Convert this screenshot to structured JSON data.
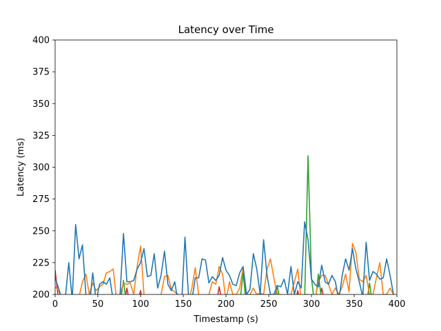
{
  "chart_data": {
    "type": "line",
    "title": "Latency over Time",
    "xlabel": "Timestamp (s)",
    "ylabel": "Latency (ms)",
    "xlim": [
      0,
      400
    ],
    "ylim": [
      200,
      400
    ],
    "xticks": [
      "0",
      "50",
      "100",
      "150",
      "200",
      "250",
      "300",
      "350",
      "400"
    ],
    "yticks": [
      "200",
      "225",
      "250",
      "275",
      "300",
      "325",
      "350",
      "375",
      "400"
    ],
    "grid": false,
    "legend": "none",
    "series": [
      {
        "color": "#1f77b4",
        "x": [
          0,
          4,
          8,
          12,
          16,
          20,
          24,
          28,
          32,
          36,
          40,
          44,
          48,
          52,
          56,
          60,
          64,
          68,
          72,
          76,
          80,
          84,
          88,
          92,
          96,
          100,
          104,
          108,
          112,
          116,
          120,
          124,
          128,
          132,
          136,
          140,
          144,
          148,
          152,
          156,
          160,
          164,
          168,
          172,
          176,
          180,
          184,
          188,
          192,
          196,
          200,
          204,
          208,
          212,
          216,
          220,
          224,
          228,
          232,
          236,
          240,
          244,
          248,
          252,
          256,
          260,
          264,
          268,
          272,
          276,
          280,
          284,
          288,
          292,
          296,
          300,
          304,
          308,
          312,
          316,
          320,
          324,
          328,
          332,
          336,
          340,
          344,
          348,
          352,
          356,
          360,
          364,
          368,
          372,
          376,
          380,
          384,
          388,
          392,
          396
        ],
        "y": [
          213,
          205,
          196,
          198,
          225,
          196,
          255,
          228,
          239,
          200,
          190,
          217,
          195,
          208,
          210,
          208,
          213,
          195,
          194,
          200,
          248,
          210,
          210,
          211,
          220,
          225,
          236,
          214,
          215,
          232,
          205,
          215,
          234,
          208,
          203,
          210,
          193,
          192,
          245,
          200,
          195,
          213,
          213,
          228,
          227,
          209,
          214,
          211,
          215,
          229,
          219,
          215,
          208,
          207,
          217,
          222,
          200,
          204,
          232,
          220,
          200,
          243,
          215,
          200,
          200,
          207,
          206,
          212,
          200,
          222,
          200,
          210,
          205,
          257,
          243,
          212,
          208,
          206,
          223,
          210,
          208,
          215,
          210,
          195,
          215,
          228,
          219,
          236,
          220,
          210,
          198,
          241,
          211,
          218,
          216,
          212,
          213,
          228,
          215,
          200
        ]
      },
      {
        "color": "#ff7f0e",
        "x": [
          0,
          4,
          8,
          12,
          16,
          20,
          24,
          28,
          32,
          36,
          40,
          44,
          48,
          52,
          56,
          60,
          64,
          68,
          72,
          76,
          80,
          84,
          88,
          92,
          96,
          100,
          104,
          108,
          112,
          116,
          120,
          124,
          128,
          132,
          136,
          140,
          144,
          148,
          152,
          156,
          160,
          164,
          168,
          172,
          176,
          180,
          184,
          188,
          192,
          196,
          200,
          204,
          208,
          212,
          216,
          220,
          224,
          228,
          232,
          236,
          240,
          244,
          248,
          252,
          256,
          260,
          264,
          268,
          272,
          276,
          280,
          284,
          288,
          292,
          296,
          300,
          304,
          308,
          312,
          316,
          320,
          324,
          328,
          332,
          336,
          340,
          344,
          348,
          352,
          356,
          360,
          364,
          368,
          372,
          376,
          380,
          384,
          388,
          392,
          396
        ],
        "y": [
          206,
          203,
          196,
          193,
          195,
          190,
          196,
          198,
          210,
          216,
          200,
          209,
          203,
          206,
          208,
          217,
          218,
          220,
          195,
          200,
          209,
          208,
          209,
          200,
          222,
          238,
          200,
          193,
          190,
          193,
          193,
          200,
          214,
          215,
          204,
          202,
          200,
          195,
          193,
          193,
          205,
          221,
          200,
          193,
          191,
          200,
          210,
          208,
          222,
          216,
          195,
          210,
          200,
          200,
          205,
          221,
          200,
          200,
          205,
          200,
          201,
          200,
          220,
          228,
          213,
          200,
          200,
          196,
          200,
          200,
          210,
          220,
          195,
          200,
          200,
          196,
          195,
          210,
          215,
          215,
          208,
          200,
          205,
          200,
          206,
          216,
          202,
          240,
          233,
          212,
          210,
          215,
          200,
          200,
          213,
          225,
          200,
          200,
          205,
          200
        ]
      },
      {
        "color": "#2ca02c",
        "x": [
          0,
          4,
          8,
          12,
          16,
          20,
          24,
          28,
          32,
          36,
          40,
          44,
          48,
          52,
          56,
          60,
          64,
          68,
          72,
          76,
          80,
          84,
          88,
          92,
          96,
          100,
          104,
          108,
          112,
          116,
          120,
          124,
          128,
          132,
          136,
          140,
          144,
          148,
          152,
          156,
          160,
          164,
          168,
          172,
          176,
          180,
          184,
          188,
          192,
          196,
          200,
          204,
          208,
          212,
          216,
          220,
          224,
          228,
          232,
          236,
          240,
          244,
          248,
          252,
          256,
          260,
          264,
          268,
          272,
          276,
          280,
          284,
          288,
          292,
          296,
          300,
          304,
          308,
          312,
          316,
          320,
          324,
          328,
          332,
          336,
          340,
          344,
          348,
          352,
          356,
          360,
          364,
          368,
          372,
          376,
          380,
          384,
          388,
          392,
          396
        ],
        "y": [
          190,
          192,
          188,
          185,
          190,
          186,
          192,
          188,
          190,
          191,
          186,
          190,
          188,
          192,
          189,
          190,
          188,
          191,
          190,
          192,
          211,
          190,
          188,
          192,
          190,
          189,
          190,
          191,
          188,
          190,
          192,
          189,
          190,
          191,
          188,
          190,
          192,
          190,
          189,
          191,
          190,
          188,
          192,
          190,
          189,
          191,
          190,
          188,
          192,
          190,
          189,
          191,
          190,
          188,
          192,
          217,
          190,
          188,
          192,
          190,
          189,
          191,
          190,
          188,
          192,
          207,
          190,
          188,
          192,
          190,
          189,
          191,
          190,
          195,
          309,
          213,
          190,
          216,
          195,
          190,
          189,
          191,
          190,
          188,
          192,
          190,
          189,
          191,
          190,
          188,
          192,
          190,
          209,
          190,
          188,
          192,
          190,
          189,
          191,
          190
        ]
      },
      {
        "color": "#d62728",
        "x": [
          0,
          4,
          8,
          12,
          16,
          20,
          24,
          28,
          32,
          36,
          40,
          44,
          48,
          52,
          56,
          60,
          64,
          68,
          72,
          76,
          80,
          84,
          88,
          92,
          96,
          100,
          104,
          108,
          112,
          116,
          120,
          124,
          128,
          132,
          136,
          140,
          144,
          148,
          152,
          156,
          160,
          164,
          168,
          172,
          176,
          180,
          184,
          188,
          192,
          196,
          200,
          204,
          208,
          212,
          216,
          220,
          224,
          228,
          232,
          236,
          240,
          244,
          248,
          252,
          256,
          260,
          264,
          268,
          272,
          276,
          280,
          284,
          288,
          292,
          296,
          300,
          304,
          308,
          312,
          316,
          320,
          324,
          328,
          332,
          336,
          340,
          344,
          348,
          352,
          356,
          360,
          364,
          368,
          372,
          376,
          380,
          384,
          388,
          392,
          396
        ],
        "y": [
          219,
          195,
          190,
          188,
          190,
          189,
          191,
          190,
          188,
          190,
          192,
          189,
          190,
          191,
          188,
          190,
          192,
          190,
          189,
          191,
          190,
          205,
          190,
          188,
          192,
          203,
          190,
          189,
          191,
          190,
          188,
          192,
          190,
          189,
          191,
          190,
          188,
          192,
          190,
          189,
          191,
          190,
          188,
          192,
          190,
          189,
          191,
          190,
          206,
          192,
          190,
          189,
          191,
          190,
          188,
          192,
          190,
          189,
          191,
          190,
          188,
          192,
          190,
          189,
          191,
          190,
          188,
          192,
          190,
          189,
          191,
          203,
          188,
          192,
          190,
          189,
          191,
          190,
          205,
          192,
          190,
          189,
          191,
          190,
          188,
          192,
          190,
          189,
          191,
          190,
          188,
          192,
          190,
          189,
          191,
          190,
          188,
          192,
          190,
          189
        ]
      }
    ]
  }
}
